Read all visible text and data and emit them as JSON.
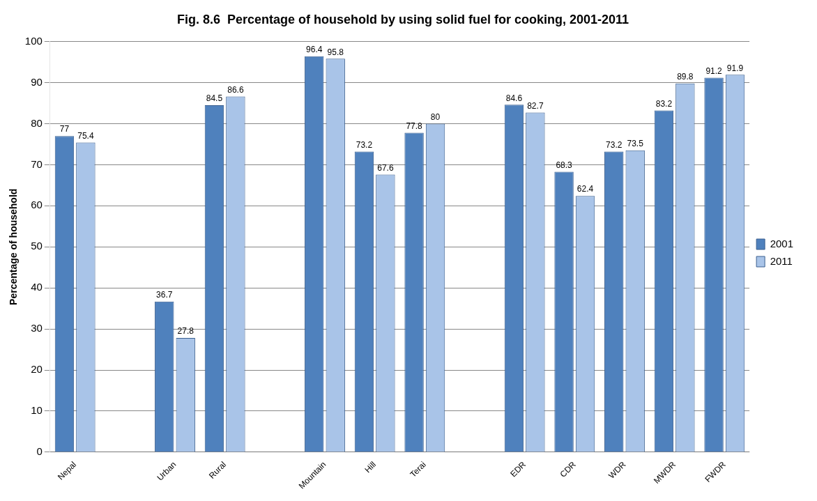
{
  "chart_data": {
    "type": "bar",
    "title": "Fig. 8.6  Percentage of household by using solid fuel for cooking, 2001-2011",
    "ylabel": "Percentage of household",
    "categories": [
      "Nepal",
      null,
      "Urban",
      "Rural",
      null,
      "Mountain",
      "Hill",
      "Terai",
      null,
      "EDR",
      "CDR",
      "WDR",
      "MWDR",
      "FWDR"
    ],
    "series": [
      {
        "name": "2001",
        "color": "#4f81bd",
        "values": [
          77,
          null,
          36.7,
          84.5,
          null,
          96.4,
          73.2,
          77.8,
          null,
          84.6,
          68.3,
          73.2,
          83.2,
          91.2
        ]
      },
      {
        "name": "2011",
        "color": "#a9c4e8",
        "values": [
          75.4,
          null,
          27.8,
          86.6,
          null,
          95.8,
          67.6,
          80,
          null,
          82.7,
          62.4,
          73.5,
          89.8,
          91.9
        ]
      }
    ],
    "ylim": [
      0,
      100
    ],
    "yticks": [
      0,
      10,
      20,
      30,
      40,
      50,
      60,
      70,
      80,
      90,
      100
    ],
    "grid": "y",
    "legend": "right",
    "data_labels": true
  }
}
